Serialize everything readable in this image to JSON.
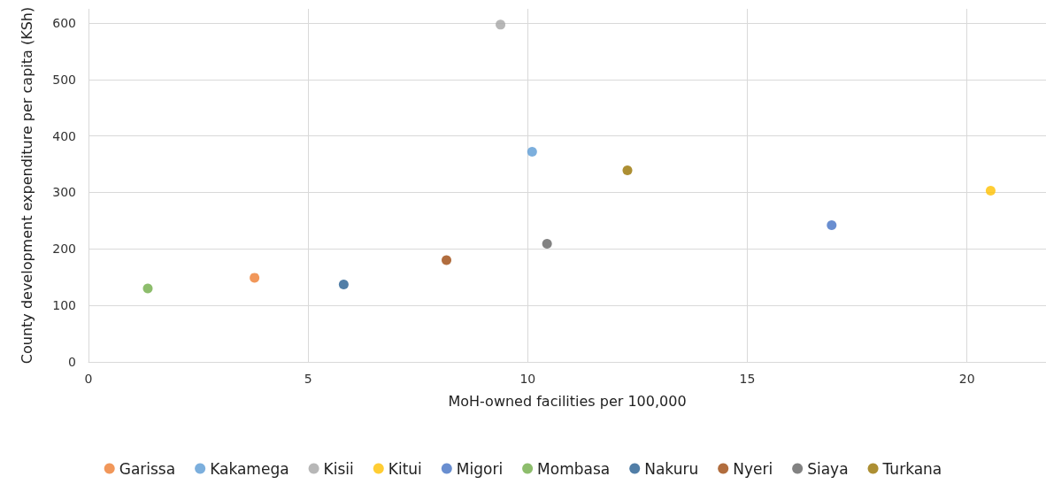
{
  "chart_data": {
    "type": "scatter",
    "xlabel": "MoH-owned facilities per 100,000",
    "ylabel": "County development expenditure per capita (KSh)",
    "xlim": [
      0,
      21.8
    ],
    "xticks": [
      0,
      5,
      10,
      15,
      20
    ],
    "ylim": [
      0,
      625
    ],
    "yticks": [
      0,
      100,
      200,
      300,
      400,
      500,
      600
    ],
    "grid": true,
    "legend": "bottom",
    "marker": "circle",
    "series": [
      {
        "name": "Garissa",
        "color": "#ed7d31",
        "x": [
          3.78
        ],
        "values": [
          149
        ]
      },
      {
        "name": "Kakamega",
        "color": "#5b9bd5",
        "x": [
          10.1
        ],
        "values": [
          372
        ]
      },
      {
        "name": "Kisii",
        "color": "#a5a5a5",
        "x": [
          9.38
        ],
        "values": [
          597
        ]
      },
      {
        "name": "Kitui",
        "color": "#ffc000",
        "x": [
          20.54
        ],
        "values": [
          303
        ]
      },
      {
        "name": "Migori",
        "color": "#4472c4",
        "x": [
          16.92
        ],
        "values": [
          242
        ]
      },
      {
        "name": "Mombasa",
        "color": "#70ad47",
        "x": [
          1.35
        ],
        "values": [
          130
        ]
      },
      {
        "name": "Nakuru",
        "color": "#255e91",
        "x": [
          5.81
        ],
        "values": [
          137
        ]
      },
      {
        "name": "Nyeri",
        "color": "#9e480e",
        "x": [
          8.15
        ],
        "values": [
          180
        ]
      },
      {
        "name": "Siaya",
        "color": "#636363",
        "x": [
          10.44
        ],
        "values": [
          209
        ]
      },
      {
        "name": "Turkana",
        "color": "#997300",
        "x": [
          12.27
        ],
        "values": [
          339
        ]
      }
    ]
  }
}
